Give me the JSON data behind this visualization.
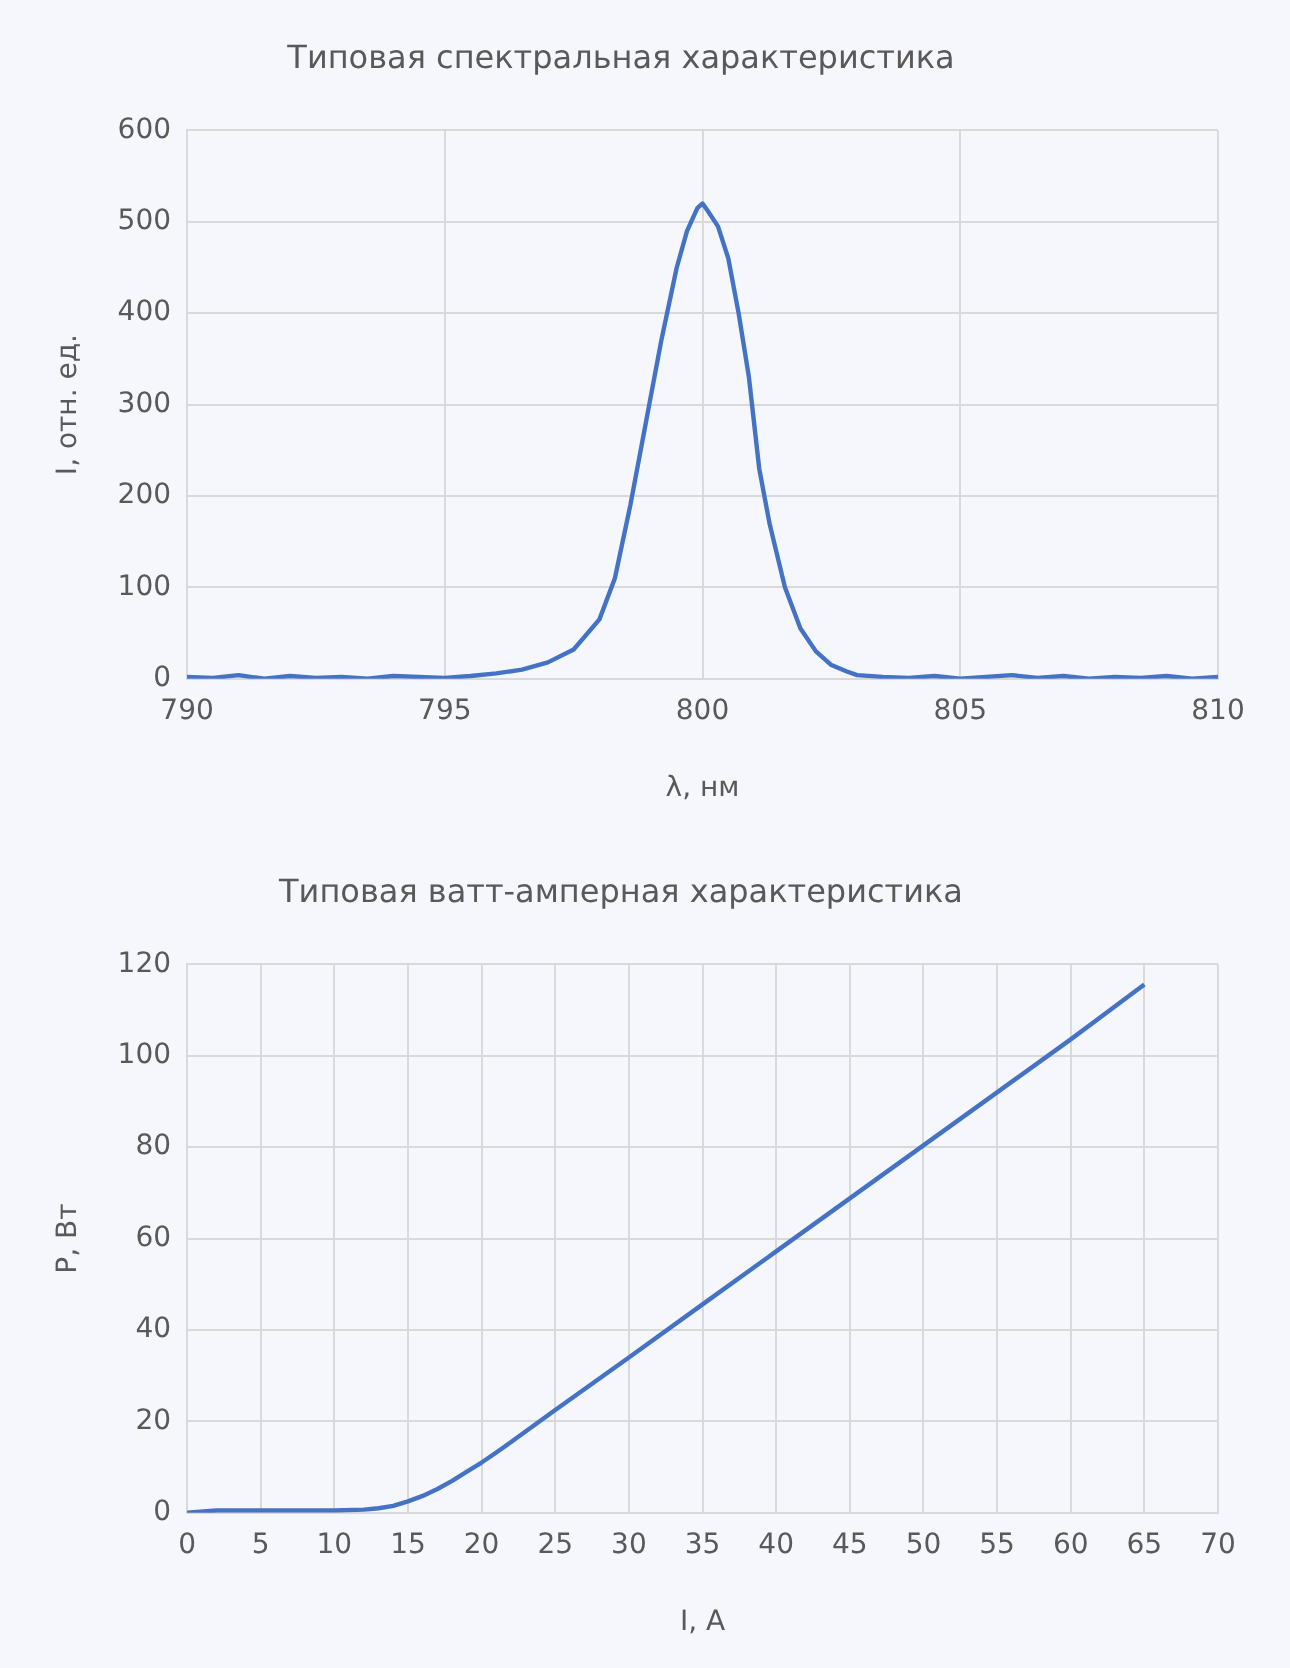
{
  "chart_data": [
    {
      "type": "line",
      "title": "Типовая спектральная характеристика",
      "xlabel": "λ, нм",
      "ylabel": "I, отн. ед.",
      "xlim": [
        790,
        810
      ],
      "xticks": [
        790,
        795,
        800,
        805,
        810
      ],
      "ylim": [
        0,
        600
      ],
      "yticks": [
        0,
        100,
        200,
        300,
        400,
        500,
        600
      ],
      "grid": true,
      "legend": false,
      "marker": "none",
      "line_style": "solid",
      "series": [
        {
          "color": "#4472c4",
          "x": [
            790,
            790.5,
            791,
            791.5,
            792,
            792.5,
            793,
            793.5,
            794,
            794.5,
            795,
            795.5,
            796,
            796.5,
            797,
            797.5,
            798,
            798.3,
            798.6,
            798.9,
            799.2,
            799.5,
            799.7,
            799.9,
            800,
            800.1,
            800.3,
            800.5,
            800.7,
            800.9,
            801.1,
            801.3,
            801.6,
            801.9,
            802.2,
            802.5,
            802.8,
            803,
            803.5,
            804,
            804.5,
            805,
            805.5,
            806,
            806.5,
            807,
            807.5,
            808,
            808.5,
            809,
            809.5,
            810
          ],
          "values": [
            2,
            1,
            4,
            0,
            3,
            1,
            2,
            0,
            3,
            2,
            1,
            3,
            6,
            10,
            18,
            32,
            65,
            110,
            190,
            280,
            370,
            450,
            490,
            515,
            520,
            512,
            495,
            460,
            400,
            330,
            230,
            170,
            100,
            55,
            30,
            15,
            8,
            4,
            2,
            1,
            3,
            0,
            2,
            4,
            1,
            3,
            0,
            2,
            1,
            3,
            0,
            2
          ]
        }
      ]
    },
    {
      "type": "line",
      "title": "Типовая ватт-амперная характеристика",
      "xlabel": "I, А",
      "ylabel": "P, Вт",
      "xlim": [
        0,
        70
      ],
      "xticks": [
        0,
        5,
        10,
        15,
        20,
        25,
        30,
        35,
        40,
        45,
        50,
        55,
        60,
        65,
        70
      ],
      "ylim": [
        0,
        120
      ],
      "yticks": [
        0,
        20,
        40,
        60,
        80,
        100,
        120
      ],
      "grid": true,
      "legend": false,
      "marker": "none",
      "line_style": "solid",
      "series": [
        {
          "color": "#4472c4",
          "x": [
            0,
            2,
            5,
            10,
            12,
            13,
            14,
            15,
            16,
            17,
            18,
            19,
            20,
            21,
            22,
            25,
            30,
            35,
            40,
            45,
            50,
            55,
            60,
            65
          ],
          "values": [
            0,
            0.5,
            0.5,
            0.5,
            0.7,
            1,
            1.5,
            2.5,
            3.7,
            5.2,
            7,
            9,
            11,
            13.2,
            15.5,
            22.5,
            34,
            45.6,
            57.2,
            68.8,
            80.4,
            92,
            103.6,
            115.6
          ]
        }
      ]
    }
  ]
}
